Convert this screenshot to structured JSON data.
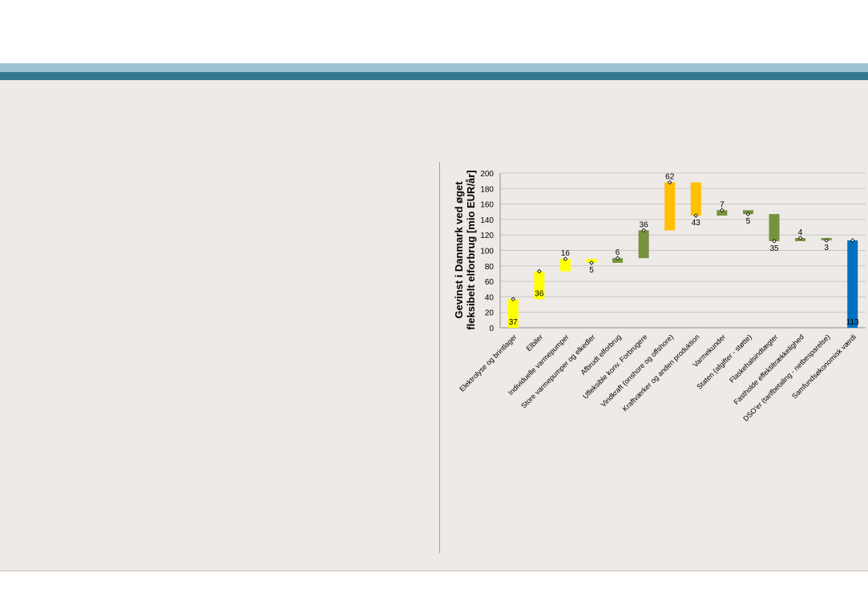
{
  "colors": {
    "band_light": "#9cc3cf",
    "band_dark": "#31788f",
    "background": "#eeeae7",
    "divider": "#b89a8a",
    "yellow": "#ffff00",
    "orange": "#ffc000",
    "green": "#76923c",
    "blue": "#0070c0"
  },
  "chart_data": {
    "type": "bar",
    "subtype": "waterfall",
    "title": "",
    "xlabel": "",
    "ylabel_lines": [
      "Gevinst i Danmark ved øget",
      "fleksibelt elforbrug [mio EUR/år]"
    ],
    "ylim": [
      0,
      200
    ],
    "yticks": [
      0,
      20,
      40,
      60,
      80,
      100,
      120,
      140,
      160,
      180,
      200
    ],
    "grid": true,
    "legend": "none",
    "categories": [
      "Elektrolyse og brintlager",
      "Elbiler",
      "Individuelle varmepumper",
      "Store varmepumper og elkedler",
      "Afbrudt elforbrug",
      "Ufleksible konv. Forbrugere",
      "Vindkraft (onshore og offshore)",
      "Kraftværker og anden produktion",
      "Varmekunder",
      "Staten (afgifter - støtte)",
      "Flaskehalsindtægter",
      "Fastholde effektiltrækkelighed",
      "DSO'er (tarifbetaling - netbesparelse)",
      "Samfundsøkonomisk værdi"
    ],
    "bars": [
      {
        "low": 0,
        "high": 37,
        "marker": 37,
        "label": "37",
        "label_pos": "inside-bottom",
        "color": "yellow"
      },
      {
        "low": 37,
        "high": 73,
        "marker": 73,
        "label": "36",
        "label_pos": "inside-bottom",
        "color": "yellow"
      },
      {
        "low": 73,
        "high": 89,
        "marker": 89,
        "label": "16",
        "label_pos": "above",
        "color": "yellow"
      },
      {
        "low": 84,
        "high": 89,
        "marker": 84,
        "label": "5",
        "label_pos": "below",
        "color": "yellow"
      },
      {
        "low": 84,
        "high": 90,
        "marker": 90,
        "label": "6",
        "label_pos": "above",
        "color": "green"
      },
      {
        "low": 90,
        "high": 126,
        "marker": 126,
        "label": "36",
        "label_pos": "above",
        "color": "green"
      },
      {
        "low": 126,
        "high": 188,
        "marker": 188,
        "label": "62",
        "label_pos": "above",
        "color": "orange"
      },
      {
        "low": 145,
        "high": 188,
        "marker": 145,
        "label": "43",
        "label_pos": "below",
        "color": "orange"
      },
      {
        "low": 145,
        "high": 152,
        "marker": 152,
        "label": "7",
        "label_pos": "above",
        "color": "green"
      },
      {
        "low": 147,
        "high": 152,
        "marker": 147,
        "label": "5",
        "label_pos": "below",
        "color": "green"
      },
      {
        "low": 112,
        "high": 147,
        "marker": 112,
        "label": "35",
        "label_pos": "below",
        "color": "green"
      },
      {
        "low": 112,
        "high": 116,
        "marker": 116,
        "label": "4",
        "label_pos": "above",
        "color": "green"
      },
      {
        "low": 113,
        "high": 116,
        "marker": 113,
        "label": "3",
        "label_pos": "below",
        "color": "green"
      },
      {
        "low": 0,
        "high": 113,
        "marker": 113,
        "label": "113",
        "label_pos": "inside-bottom",
        "color": "blue"
      }
    ]
  }
}
